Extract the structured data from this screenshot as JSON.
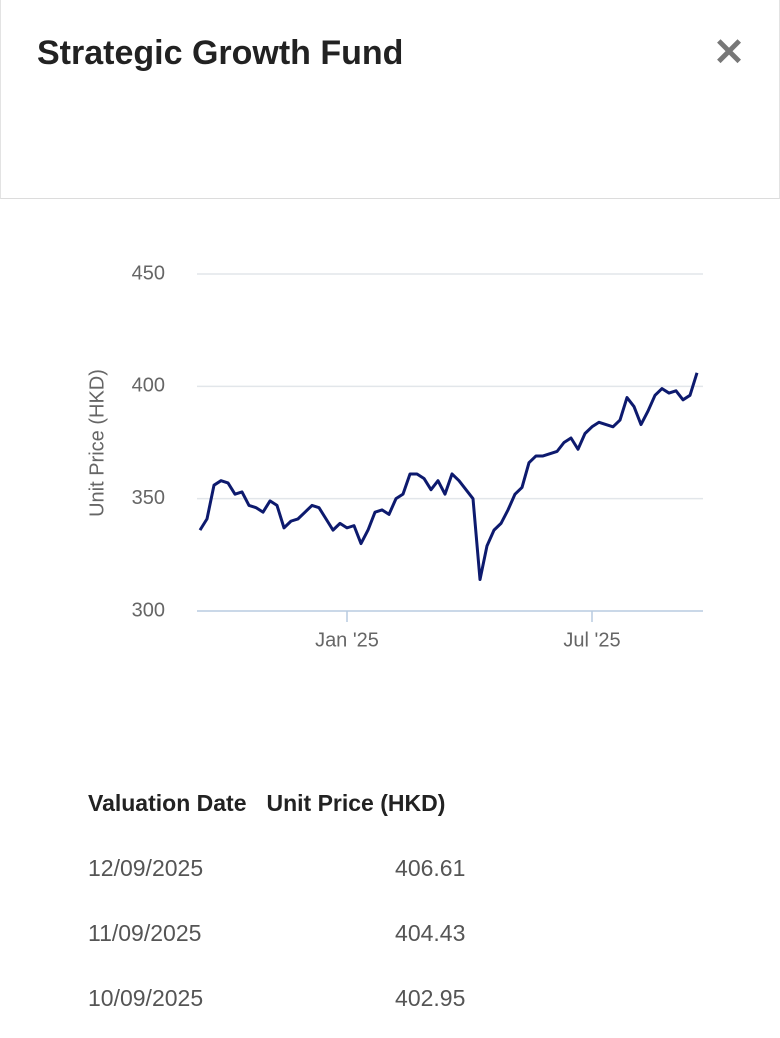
{
  "header": {
    "title": "Strategic Growth Fund"
  },
  "chart_data": {
    "type": "line",
    "y_label": "Unit Price (HKD)",
    "categories": [
      null,
      null,
      null,
      null,
      null,
      null,
      null,
      null,
      null,
      null,
      null,
      null,
      null,
      null,
      null,
      null,
      null,
      null,
      null,
      null,
      null,
      "Jan '25",
      null,
      null,
      null,
      null,
      null,
      null,
      null,
      null,
      null,
      null,
      null,
      null,
      null,
      null,
      null,
      null,
      null,
      null,
      null,
      null,
      null,
      null,
      null,
      null,
      null,
      null,
      null,
      null,
      null,
      null,
      null,
      null,
      null,
      null,
      "Jul '25",
      null,
      null,
      null,
      null,
      null,
      null,
      null,
      null,
      null,
      null,
      null,
      null,
      null,
      null,
      null
    ],
    "values": [
      336,
      341,
      356,
      358,
      357,
      352,
      353,
      347,
      346,
      344,
      349,
      347,
      337,
      340,
      341,
      344,
      347,
      346,
      341,
      336,
      339,
      337,
      338,
      330,
      336,
      344,
      345,
      343,
      350,
      352,
      361,
      361,
      359,
      354,
      358,
      352,
      361,
      358,
      354,
      350,
      314,
      329,
      336,
      339,
      345,
      352,
      355,
      366,
      369,
      369,
      370,
      371,
      375,
      377,
      372,
      379,
      382,
      384,
      383,
      382,
      385,
      395,
      391,
      383,
      389,
      396,
      399,
      397,
      398,
      394,
      396,
      406
    ],
    "color": "#0d1a6e",
    "ylim": [
      300,
      450
    ],
    "yticks": [
      300,
      350,
      400,
      450
    ],
    "grid": true
  },
  "table": {
    "columns": [
      "Valuation Date",
      "Unit Price (HKD)"
    ],
    "rows": [
      [
        "12/09/2025",
        "406.61"
      ],
      [
        "11/09/2025",
        "404.43"
      ],
      [
        "10/09/2025",
        "402.95"
      ]
    ]
  }
}
